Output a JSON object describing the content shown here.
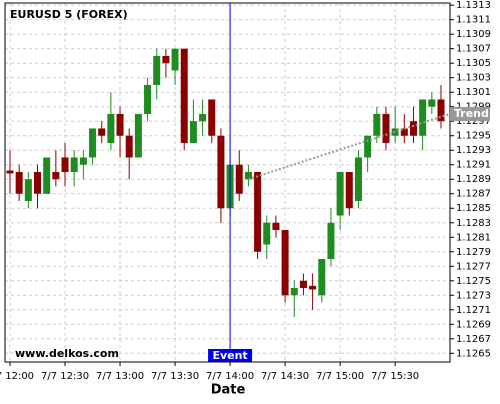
{
  "chart_data": {
    "type": "candlestick",
    "title": "EURUSD 5 (FOREX)",
    "xlabel": "Date",
    "watermark": "www.delkos.com",
    "categories": [
      "7/7 12:00",
      null,
      null,
      null,
      null,
      null,
      "7/7 12:30",
      null,
      null,
      null,
      null,
      null,
      "7/7 13:00",
      null,
      null,
      null,
      null,
      null,
      "7/7 13:30",
      null,
      null,
      null,
      null,
      null,
      "7/7 14:00",
      null,
      null,
      null,
      null,
      null,
      "7/7 14:30",
      null,
      null,
      null,
      null,
      null,
      "7/7 15:00",
      null,
      null,
      null,
      null,
      null,
      "7/7 15:30",
      null,
      null,
      null,
      null,
      null
    ],
    "open": [
      1.12902,
      1.129,
      1.1286,
      1.129,
      1.1287,
      1.129,
      1.1292,
      1.129,
      1.1291,
      1.1292,
      1.1296,
      1.1294,
      1.1298,
      1.1295,
      1.1292,
      1.1298,
      1.1302,
      1.1306,
      1.1304,
      1.1307,
      1.1294,
      1.1297,
      1.13,
      1.1295,
      1.1285,
      1.1291,
      1.1289,
      1.129,
      1.128,
      1.1283,
      1.1282,
      1.1273,
      1.1275,
      1.12743,
      1.1273,
      1.1278,
      1.1284,
      1.129,
      1.1286,
      1.1292,
      1.1295,
      1.1298,
      1.1295,
      1.1296,
      1.1297,
      1.1295,
      1.1299,
      1.13
    ],
    "high": [
      1.1293,
      1.1291,
      1.129,
      1.1291,
      1.1292,
      1.1293,
      1.1294,
      1.1293,
      1.1293,
      1.1296,
      1.1297,
      1.1301,
      1.1299,
      1.1296,
      1.1298,
      1.1303,
      1.1307,
      1.1307,
      1.1307,
      1.1307,
      1.13,
      1.13,
      1.13,
      1.1296,
      1.1292,
      1.1293,
      1.1291,
      1.129,
      1.1284,
      1.1284,
      1.1282,
      1.1275,
      1.1276,
      1.1276,
      1.1278,
      1.1285,
      1.129,
      1.129,
      1.1293,
      1.1295,
      1.1299,
      1.1299,
      1.1299,
      1.1298,
      1.1299,
      1.13,
      1.1301,
      1.1302
    ],
    "low": [
      1.1287,
      1.1286,
      1.1285,
      1.1285,
      1.1287,
      1.1288,
      1.1288,
      1.1288,
      1.1289,
      1.1291,
      1.1294,
      1.1293,
      1.1292,
      1.1289,
      1.1292,
      1.1297,
      1.13,
      1.1303,
      1.1302,
      1.1293,
      1.1294,
      1.1295,
      1.1294,
      1.1283,
      1.1284,
      1.1286,
      1.1288,
      1.1278,
      1.1278,
      1.1281,
      1.1272,
      1.127,
      1.1273,
      1.1271,
      1.1272,
      1.1277,
      1.1282,
      1.1284,
      1.1285,
      1.129,
      1.1294,
      1.1293,
      1.1294,
      1.1294,
      1.1294,
      1.1293,
      1.1298,
      1.1296
    ],
    "close": [
      1.12898,
      1.1287,
      1.1289,
      1.1287,
      1.1292,
      1.1289,
      1.129,
      1.1292,
      1.1292,
      1.1296,
      1.1295,
      1.1298,
      1.1295,
      1.1292,
      1.1298,
      1.1302,
      1.1306,
      1.1305,
      1.1307,
      1.1294,
      1.1297,
      1.1298,
      1.1295,
      1.1285,
      1.1291,
      1.1287,
      1.129,
      1.1279,
      1.1283,
      1.1282,
      1.1273,
      1.1274,
      1.1274,
      1.12738,
      1.1278,
      1.1283,
      1.129,
      1.1285,
      1.1292,
      1.1295,
      1.1298,
      1.1294,
      1.1296,
      1.1295,
      1.1295,
      1.13,
      1.13,
      1.1297
    ],
    "up_color": "#1e8c1e",
    "down_color": "#8b0000",
    "ylim": [
      1.12638,
      1.13133
    ],
    "yticks": [
      1.1265,
      1.1267,
      1.1269,
      1.1271,
      1.1273,
      1.1275,
      1.1277,
      1.1279,
      1.1281,
      1.1283,
      1.1285,
      1.1287,
      1.1289,
      1.1291,
      1.1293,
      1.1295,
      1.1297,
      1.1299,
      1.1301,
      1.1303,
      1.1305,
      1.1307,
      1.1309,
      1.1311,
      1.1313
    ],
    "grid": true,
    "event": {
      "label": "Event",
      "x": "7/7 14:00",
      "color": "#0000ee"
    },
    "trend": {
      "label": "Trend",
      "start": 1.1289,
      "end": 1.1298,
      "color": "#999999"
    }
  }
}
